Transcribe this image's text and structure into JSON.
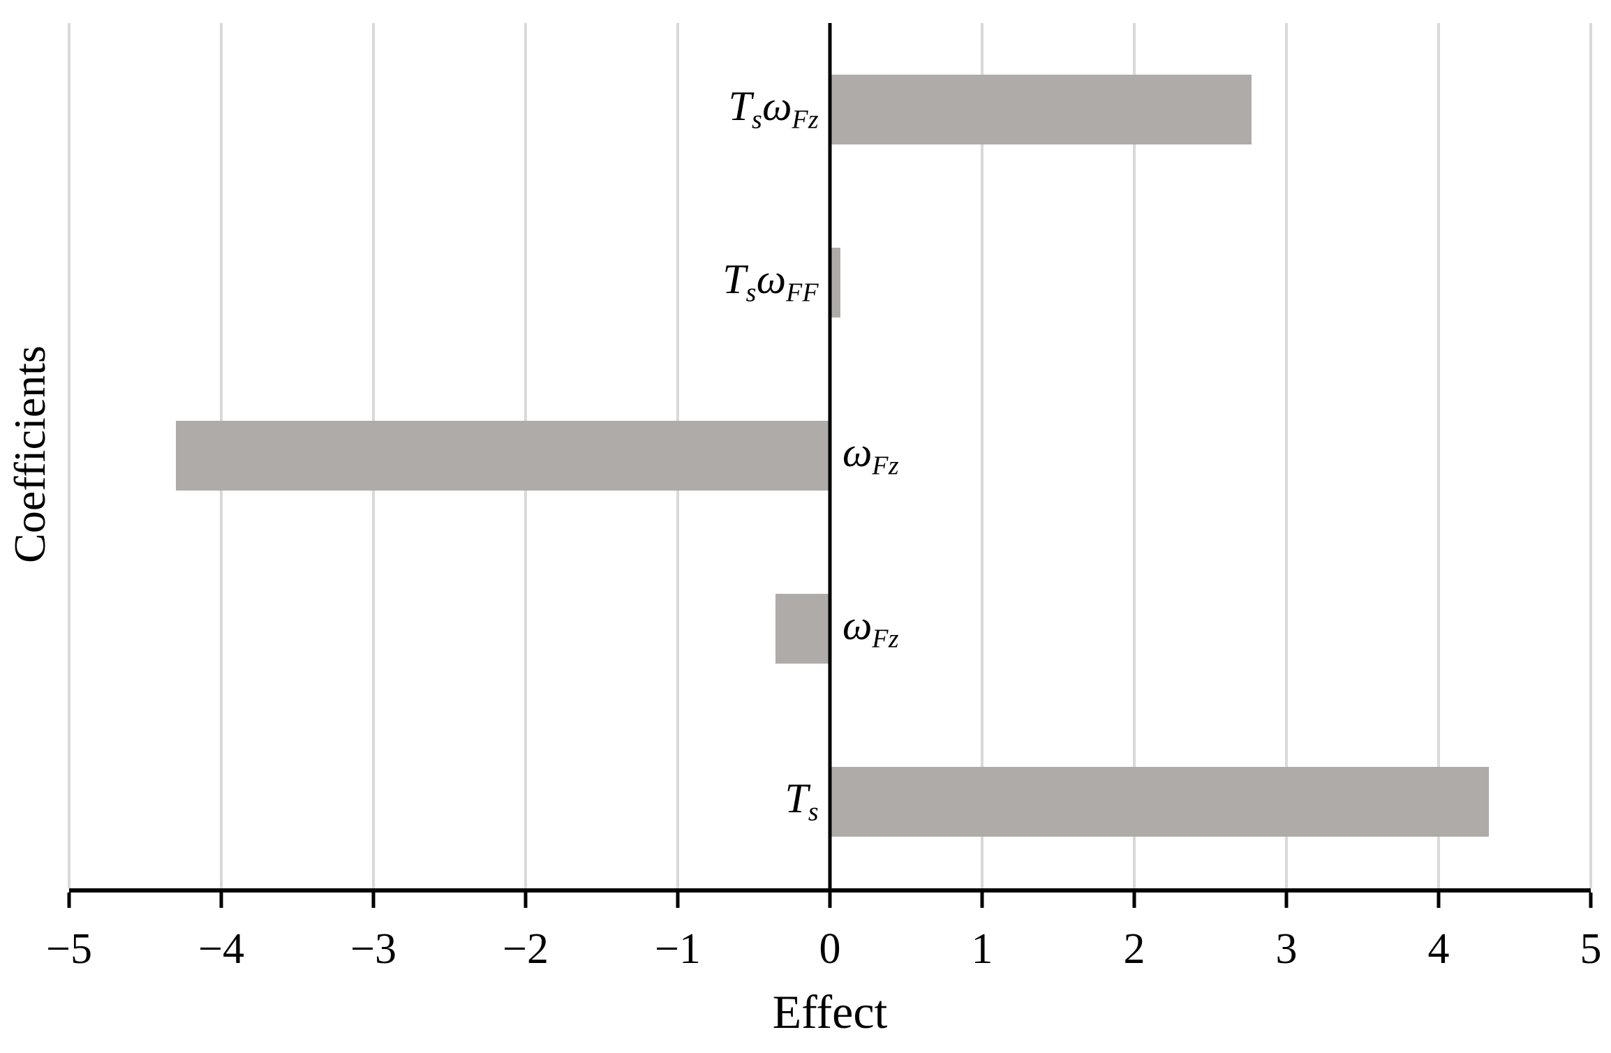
{
  "chart_data": {
    "type": "bar",
    "orientation": "horizontal",
    "title": "",
    "xlabel": "Effect",
    "ylabel": "Coefficients",
    "xlim": [
      -5,
      5
    ],
    "xticks": [
      -5,
      -4,
      -3,
      -2,
      -1,
      0,
      1,
      2,
      3,
      4,
      5
    ],
    "xtick_labels": [
      "−5",
      "−4",
      "−3",
      "−2",
      "−1",
      "0",
      "1",
      "2",
      "3",
      "4",
      "5"
    ],
    "grid": "vertical gridlines at every integer tick, behind bars",
    "legend": "none",
    "bar_color": "#aeaba8",
    "grid_color": "#d9d9d9",
    "axis_color": "#000000",
    "categories": [
      "T_s ω_Fz",
      "T_s ω_FF",
      "ω_Fz",
      "ω_Fz",
      "T_s"
    ],
    "values": [
      2.77,
      0.07,
      -4.3,
      -0.36,
      4.33
    ],
    "bars": [
      {
        "label_text": "T_s ω_Fz",
        "label_parts": [
          {
            "base": "T",
            "sub": "s"
          },
          {
            "base": "ω",
            "sub": "Fz"
          }
        ],
        "value": 2.77
      },
      {
        "label_text": "T_s ω_FF",
        "label_parts": [
          {
            "base": "T",
            "sub": "s"
          },
          {
            "base": "ω",
            "sub": "FF"
          }
        ],
        "value": 0.07
      },
      {
        "label_text": "ω_Fz",
        "label_parts": [
          {
            "base": "ω",
            "sub": "Fz"
          }
        ],
        "value": -4.3
      },
      {
        "label_text": "ω_Fz",
        "label_parts": [
          {
            "base": "ω",
            "sub": "Fz"
          }
        ],
        "value": -0.36
      },
      {
        "label_text": "T_s",
        "label_parts": [
          {
            "base": "T",
            "sub": "s"
          }
        ],
        "value": 4.33
      }
    ]
  }
}
